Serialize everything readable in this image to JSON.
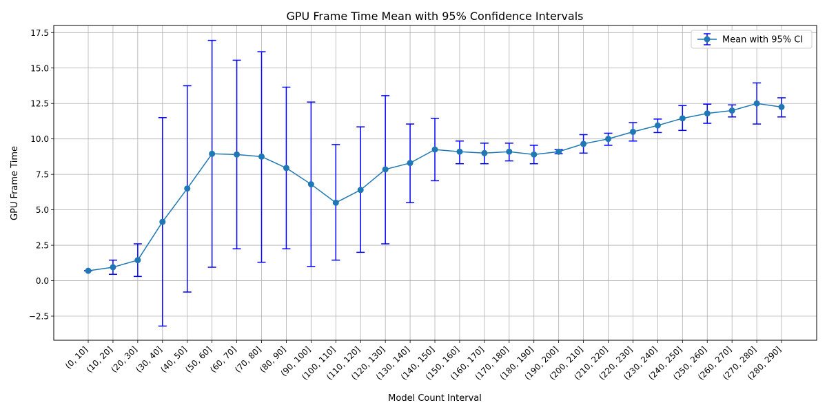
{
  "chart_data": {
    "type": "line",
    "title": "GPU Frame Time Mean with 95% Confidence Intervals",
    "xlabel": "Model Count Interval",
    "ylabel": "GPU Frame Time",
    "ylim": [
      -4.2,
      18.0
    ],
    "yticks": [
      -2.5,
      0.0,
      2.5,
      5.0,
      7.5,
      10.0,
      12.5,
      15.0,
      17.5
    ],
    "ytick_labels": [
      "−2.5",
      "0.0",
      "2.5",
      "5.0",
      "7.5",
      "10.0",
      "12.5",
      "15.0",
      "17.5"
    ],
    "grid": true,
    "legend": {
      "position": "top-right",
      "entries": [
        "Mean with 95% CI"
      ]
    },
    "colors": {
      "line": "#1f77b4",
      "errorbar": "#0000ff",
      "grid": "#b0b0b0"
    },
    "categories": [
      "(0, 10]",
      "(10, 20]",
      "(20, 30]",
      "(30, 40]",
      "(40, 50]",
      "(50, 60]",
      "(60, 70]",
      "(70, 80]",
      "(80, 90]",
      "(90, 100]",
      "(100, 110]",
      "(110, 120]",
      "(120, 130]",
      "(130, 140]",
      "(140, 150]",
      "(150, 160]",
      "(160, 170]",
      "(170, 180]",
      "(180, 190]",
      "(190, 200]",
      "(200, 210]",
      "(210, 220]",
      "(220, 230]",
      "(230, 240]",
      "(240, 250]",
      "(250, 260]",
      "(260, 270]",
      "(270, 280]",
      "(280, 290]"
    ],
    "series": [
      {
        "name": "Mean with 95% CI",
        "values": [
          0.7,
          0.95,
          1.45,
          4.15,
          6.5,
          8.95,
          8.9,
          8.75,
          7.95,
          6.8,
          5.5,
          6.4,
          7.85,
          8.3,
          9.25,
          9.1,
          9.0,
          9.1,
          8.9,
          9.1,
          9.65,
          10.0,
          10.5,
          10.95,
          11.45,
          11.8,
          12.0,
          12.5,
          12.25
        ],
        "ci_lower": [
          0.7,
          0.45,
          0.3,
          -3.2,
          -0.8,
          0.95,
          2.25,
          1.3,
          2.25,
          1.0,
          1.45,
          2.0,
          2.6,
          5.5,
          7.05,
          8.25,
          8.25,
          8.45,
          8.25,
          8.95,
          9.0,
          9.55,
          9.85,
          10.45,
          10.6,
          11.1,
          11.55,
          11.05,
          11.55
        ],
        "ci_upper": [
          0.7,
          1.45,
          2.6,
          11.5,
          13.75,
          16.95,
          15.55,
          16.15,
          13.65,
          12.6,
          9.6,
          10.85,
          13.05,
          11.05,
          11.45,
          9.85,
          9.7,
          9.7,
          9.55,
          9.25,
          10.3,
          10.4,
          11.15,
          11.4,
          12.35,
          12.45,
          12.4,
          13.95,
          12.9
        ]
      }
    ]
  }
}
